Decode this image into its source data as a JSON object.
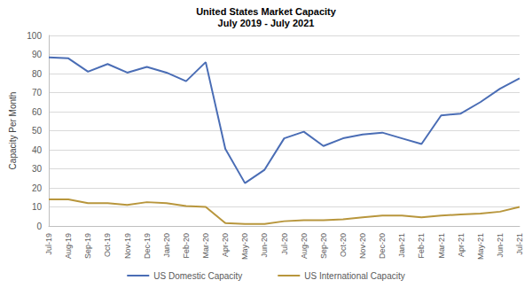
{
  "chart_data": {
    "type": "line",
    "title": "United States Market Capacity",
    "subtitle": "July 2019 - July 2021",
    "y_label": "Capacity Per Month",
    "categories": [
      "Jul-19",
      "Aug-19",
      "Sep-19",
      "Oct-19",
      "Nov-19",
      "Dec-19",
      "Jan-20",
      "Feb-20",
      "Mar-20",
      "Apr-20",
      "May-20",
      "Jun-20",
      "Jul-20",
      "Aug-20",
      "Sep-20",
      "Oct-20",
      "Nov-20",
      "Dec-20",
      "Jan-21",
      "Feb-21",
      "Mar-21",
      "Apr-21",
      "May-21",
      "Jun-21",
      "Jul-21"
    ],
    "series": [
      {
        "name": "US Domestic Capacity",
        "color": "#4a6db5",
        "values": [
          88.5,
          88,
          81,
          85,
          80.5,
          83.5,
          80.5,
          76,
          86,
          40.5,
          22.5,
          29.5,
          46,
          49.5,
          42,
          46,
          48,
          49,
          46,
          43,
          58,
          59,
          65,
          72,
          77.5
        ]
      },
      {
        "name": "US International Capacity",
        "color": "#b8963c",
        "values": [
          14,
          14,
          12,
          12,
          11,
          12.5,
          12,
          10.5,
          10,
          1.5,
          1,
          1,
          2.5,
          3,
          3,
          3.5,
          4.5,
          5.5,
          5.5,
          4.5,
          5.5,
          6,
          6.5,
          7.5,
          10
        ]
      }
    ],
    "ylim": [
      0,
      100
    ],
    "yticks": [
      0,
      10,
      20,
      30,
      40,
      50,
      60,
      70,
      80,
      90,
      100
    ],
    "grid": true,
    "legend": "bottom"
  }
}
